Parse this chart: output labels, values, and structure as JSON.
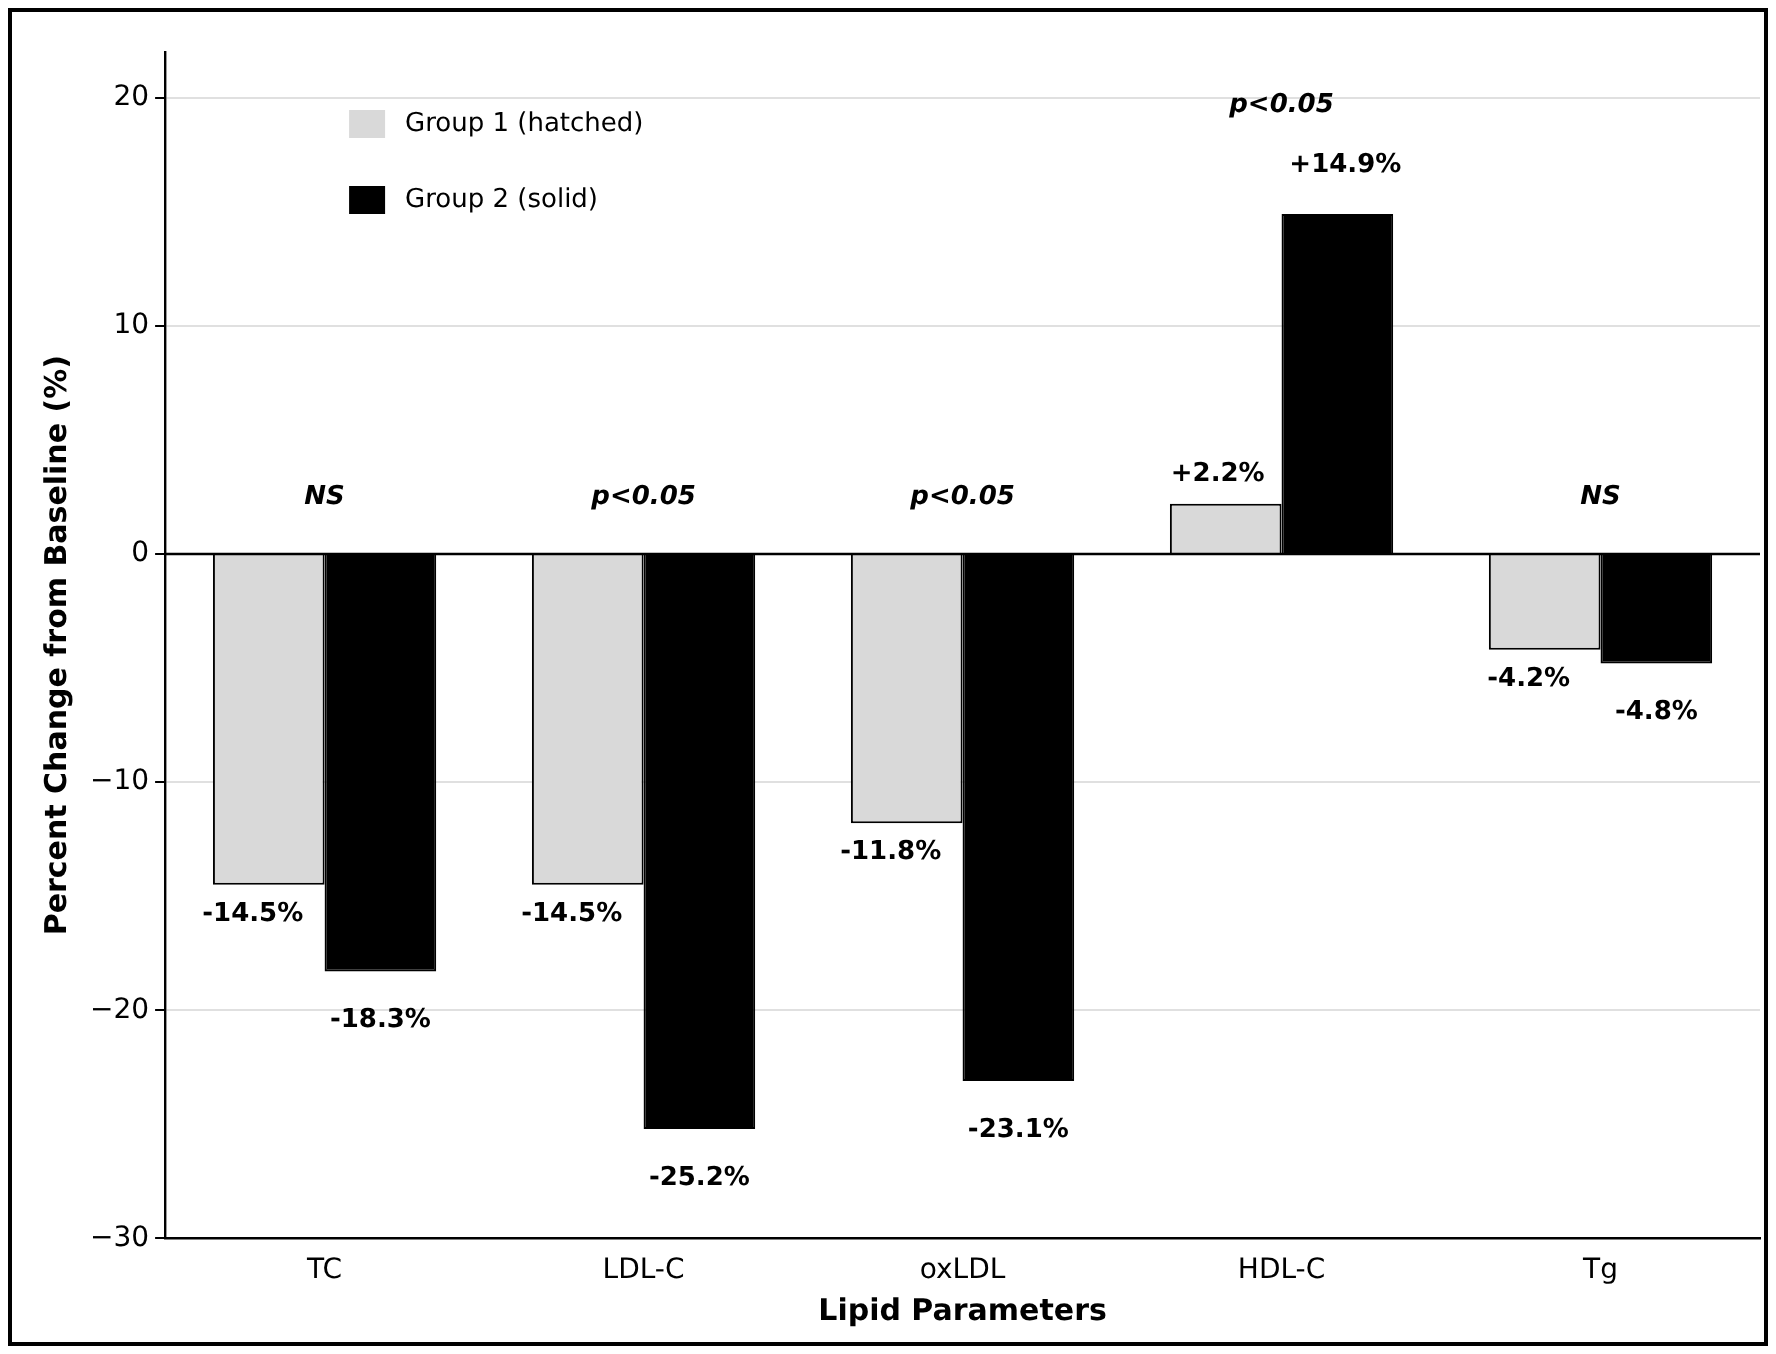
{
  "chart_data": {
    "type": "bar",
    "xlabel": "Lipid Parameters",
    "ylabel": "Percent Change from Baseline (%)",
    "categories": [
      "TC",
      "LDL-C",
      "oxLDL",
      "HDL-C",
      "Tg"
    ],
    "series": [
      {
        "name": "Group 1 (hatched)",
        "color": "#d9d9d9",
        "values": [
          -14.5,
          -14.5,
          -11.8,
          2.2,
          -4.2
        ],
        "value_labels": [
          "-14.5%",
          "-14.5%",
          "-11.8%",
          "+2.2%",
          "-4.2%"
        ]
      },
      {
        "name": "Group 2 (solid)",
        "color": "#000000",
        "values": [
          -18.3,
          -25.2,
          -23.1,
          14.9,
          -4.8
        ],
        "value_labels": [
          "-18.3%",
          "-25.2%",
          "-23.1%",
          "+14.9%",
          "-4.8%"
        ]
      }
    ],
    "ylim": [
      -30,
      22
    ],
    "yticks": [
      -30,
      -20,
      -10,
      0,
      10,
      20
    ],
    "grid": "y",
    "legend": "top left",
    "ref_lines": [
      {
        "axis": "y",
        "value": 0,
        "color": "#000000"
      }
    ],
    "annotations": [
      "NS",
      "p<0.05",
      "p<0.05",
      "p<0.05",
      "NS"
    ]
  }
}
